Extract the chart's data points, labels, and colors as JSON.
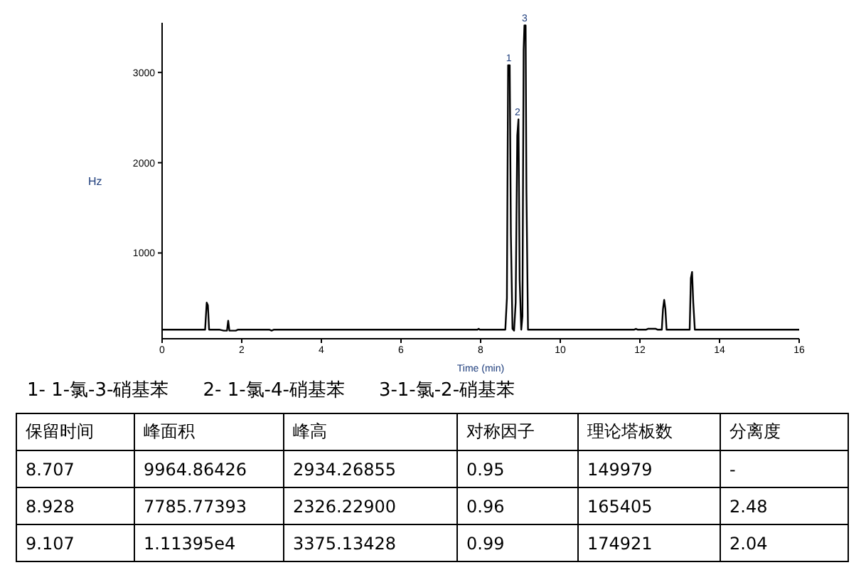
{
  "chart_data": {
    "type": "line",
    "xlabel": "Time (min)",
    "ylabel": "Hz",
    "x": [
      0,
      1.08,
      1.12,
      1.15,
      1.18,
      1.45,
      1.55,
      1.63,
      1.66,
      1.69,
      1.85,
      1.9,
      2.7,
      2.75,
      2.8,
      7.92,
      7.95,
      7.98,
      8.62,
      8.66,
      8.69,
      8.73,
      8.76,
      8.8,
      8.84,
      8.88,
      8.92,
      8.95,
      8.98,
      9.02,
      9.05,
      9.08,
      9.1,
      9.13,
      9.15,
      9.19,
      11.85,
      11.9,
      11.95,
      12.15,
      12.2,
      12.4,
      12.45,
      12.55,
      12.58,
      12.61,
      12.64,
      12.67,
      13.25,
      13.28,
      13.31,
      13.34,
      13.38,
      16
    ],
    "series": [
      {
        "color": "#000000",
        "values": [
          150,
          150,
          450,
          420,
          150,
          150,
          140,
          140,
          250,
          140,
          140,
          150,
          150,
          140,
          150,
          150,
          160,
          150,
          150,
          500,
          3080,
          3080,
          1200,
          160,
          140,
          450,
          2300,
          2480,
          700,
          150,
          300,
          3250,
          3520,
          3520,
          1700,
          150,
          150,
          160,
          150,
          150,
          160,
          160,
          150,
          150,
          380,
          480,
          380,
          150,
          150,
          720,
          790,
          450,
          150,
          150
        ]
      }
    ],
    "xlim": [
      0,
      16
    ],
    "xticks": [
      0,
      2,
      4,
      6,
      8,
      10,
      12,
      14,
      16
    ],
    "ylim": [
      50,
      3550
    ],
    "yticks": [
      1000,
      2000,
      3000
    ],
    "grid": false,
    "legend": false,
    "marker": "none",
    "line_style": "solid",
    "annotations": [
      {
        "text": "1",
        "x": 8.707,
        "y": 3080
      },
      {
        "text": "2",
        "x": 8.928,
        "y": 2480
      },
      {
        "text": "3",
        "x": 9.107,
        "y": 3520
      },
      "1- 1-氯-3-硝基苯",
      "2- 1-氯-4-硝基苯",
      "3-1-氯-2-硝基苯",
      "保留时间",
      "峰面积",
      "峰高",
      "对称因子",
      "理论塔板数",
      "分离度",
      "8.707",
      "9964.86426",
      "2934.26855",
      "0.95",
      "149979",
      "-",
      "8.928",
      "7785.77393",
      "2326.22900",
      "0.96",
      "165405",
      "2.48",
      "9.107",
      "1.11395e4",
      "3375.13428",
      "0.99",
      "174921",
      "2.04"
    ]
  }
}
